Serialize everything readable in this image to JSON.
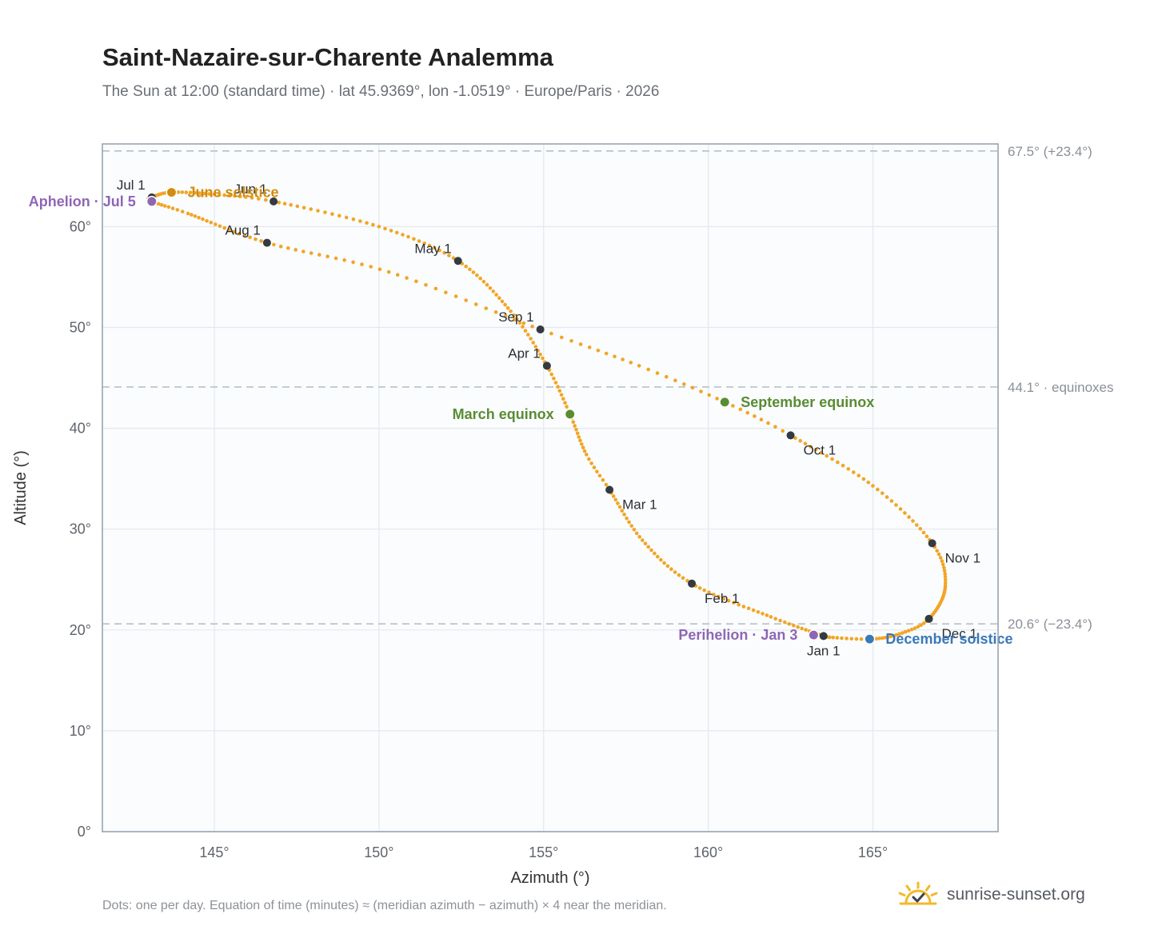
{
  "header": {
    "title": "Saint-Nazaire-sur-Charente Analemma",
    "subtitle": "The Sun at 12:00 (standard time) · lat 45.9369°, lon -1.0519° · Europe/Paris · 2026"
  },
  "footer": {
    "note": "Dots: one per day. Equation of time (minutes) ≈ (meridian azimuth − azimuth) × 4 near the meridian.",
    "brand": "sunrise-sunset.org",
    "brand_icon": "sun-check-icon"
  },
  "colors": {
    "curve": "#f2a524",
    "month_marker": "#343a40",
    "solstice_june": "#d18d10",
    "solstice_december": "#3a78b8",
    "equinox": "#5a8c32",
    "apsis": "#8e66b4"
  },
  "chart_data": {
    "type": "scatter",
    "xlabel": "Azimuth (°)",
    "ylabel": "Altitude (°)",
    "xlim": [
      141.6,
      168.8
    ],
    "ylim": [
      0,
      68.2
    ],
    "x_ticks": [
      145,
      150,
      155,
      160,
      165
    ],
    "x_tick_labels": [
      "145°",
      "150°",
      "155°",
      "160°",
      "165°"
    ],
    "y_ticks": [
      0,
      10,
      20,
      30,
      40,
      50,
      60
    ],
    "y_tick_labels": [
      "0°",
      "10°",
      "20°",
      "30°",
      "40°",
      "50°",
      "60°"
    ],
    "grid": true,
    "reference_lines": [
      {
        "y": 67.5,
        "label": "67.5° (+23.4°)"
      },
      {
        "y": 44.1,
        "label": "44.1° · equinoxes"
      },
      {
        "y": 20.6,
        "label": "20.6° (−23.4°)"
      }
    ],
    "path": [
      {
        "day": 1,
        "az": 163.5,
        "alt": 19.4
      },
      {
        "day": 15,
        "az": 161.9,
        "alt": 21.3
      },
      {
        "day": 32,
        "az": 159.5,
        "alt": 24.6
      },
      {
        "day": 46,
        "az": 158.0,
        "alt": 28.9
      },
      {
        "day": 60,
        "az": 157.0,
        "alt": 33.9
      },
      {
        "day": 68,
        "az": 156.3,
        "alt": 37.4
      },
      {
        "day": 79,
        "az": 155.8,
        "alt": 41.4
      },
      {
        "day": 91,
        "az": 155.1,
        "alt": 46.2
      },
      {
        "day": 105,
        "az": 154.0,
        "alt": 51.6
      },
      {
        "day": 121,
        "az": 152.4,
        "alt": 56.6
      },
      {
        "day": 136,
        "az": 150.0,
        "alt": 60.0
      },
      {
        "day": 152,
        "az": 146.8,
        "alt": 62.5
      },
      {
        "day": 162,
        "az": 145.0,
        "alt": 63.2
      },
      {
        "day": 172,
        "az": 143.7,
        "alt": 63.4
      },
      {
        "day": 182,
        "az": 143.1,
        "alt": 62.9
      },
      {
        "day": 186,
        "az": 143.1,
        "alt": 62.5
      },
      {
        "day": 196,
        "az": 144.2,
        "alt": 61.3
      },
      {
        "day": 213,
        "az": 146.6,
        "alt": 58.4
      },
      {
        "day": 228,
        "az": 150.3,
        "alt": 55.5
      },
      {
        "day": 244,
        "az": 154.9,
        "alt": 49.8
      },
      {
        "day": 255,
        "az": 157.9,
        "alt": 46.2
      },
      {
        "day": 265,
        "az": 160.5,
        "alt": 42.6
      },
      {
        "day": 274,
        "az": 162.5,
        "alt": 39.3
      },
      {
        "day": 290,
        "az": 165.0,
        "alt": 34.3
      },
      {
        "day": 305,
        "az": 166.8,
        "alt": 28.6
      },
      {
        "day": 318,
        "az": 167.2,
        "alt": 24.4
      },
      {
        "day": 335,
        "az": 166.7,
        "alt": 21.1
      },
      {
        "day": 345,
        "az": 165.8,
        "alt": 19.6
      },
      {
        "day": 355,
        "az": 164.9,
        "alt": 19.1
      },
      {
        "day": 365,
        "az": 163.6,
        "alt": 19.3
      }
    ],
    "month_markers": [
      {
        "label": "Jan 1",
        "az": 163.5,
        "alt": 19.4,
        "anchor": "below"
      },
      {
        "label": "Feb 1",
        "az": 159.5,
        "alt": 24.6,
        "anchor": "below-right"
      },
      {
        "label": "Mar 1",
        "az": 157.0,
        "alt": 33.9,
        "anchor": "below-right"
      },
      {
        "label": "Apr 1",
        "az": 155.1,
        "alt": 46.2,
        "anchor": "above-left"
      },
      {
        "label": "May 1",
        "az": 152.4,
        "alt": 56.6,
        "anchor": "above-left"
      },
      {
        "label": "Jun 1",
        "az": 146.8,
        "alt": 62.5,
        "anchor": "above-left"
      },
      {
        "label": "Jul 1",
        "az": 143.1,
        "alt": 62.9,
        "anchor": "above-left"
      },
      {
        "label": "Aug 1",
        "az": 146.6,
        "alt": 58.4,
        "anchor": "above-left"
      },
      {
        "label": "Sep 1",
        "az": 154.9,
        "alt": 49.8,
        "anchor": "above-left"
      },
      {
        "label": "Oct 1",
        "az": 162.5,
        "alt": 39.3,
        "anchor": "below-right"
      },
      {
        "label": "Nov 1",
        "az": 166.8,
        "alt": 28.6,
        "anchor": "below-right"
      },
      {
        "label": "Dec 1",
        "az": 166.7,
        "alt": 21.1,
        "anchor": "below-right"
      }
    ],
    "events": [
      {
        "label": "June solstice",
        "az": 143.7,
        "alt": 63.4,
        "color": "#d18d10",
        "anchor": "right"
      },
      {
        "label": "December solstice",
        "az": 164.9,
        "alt": 19.1,
        "color": "#3a78b8",
        "anchor": "right"
      },
      {
        "label": "March equinox",
        "az": 155.8,
        "alt": 41.4,
        "color": "#5a8c32",
        "anchor": "left"
      },
      {
        "label": "September equinox",
        "az": 160.5,
        "alt": 42.6,
        "color": "#5a8c32",
        "anchor": "right"
      },
      {
        "label": "Aphelion · Jul 5",
        "az": 143.1,
        "alt": 62.5,
        "color": "#8e66b4",
        "anchor": "left"
      },
      {
        "label": "Perihelion · Jan 3",
        "az": 163.2,
        "alt": 19.5,
        "color": "#8e66b4",
        "anchor": "left"
      }
    ]
  }
}
